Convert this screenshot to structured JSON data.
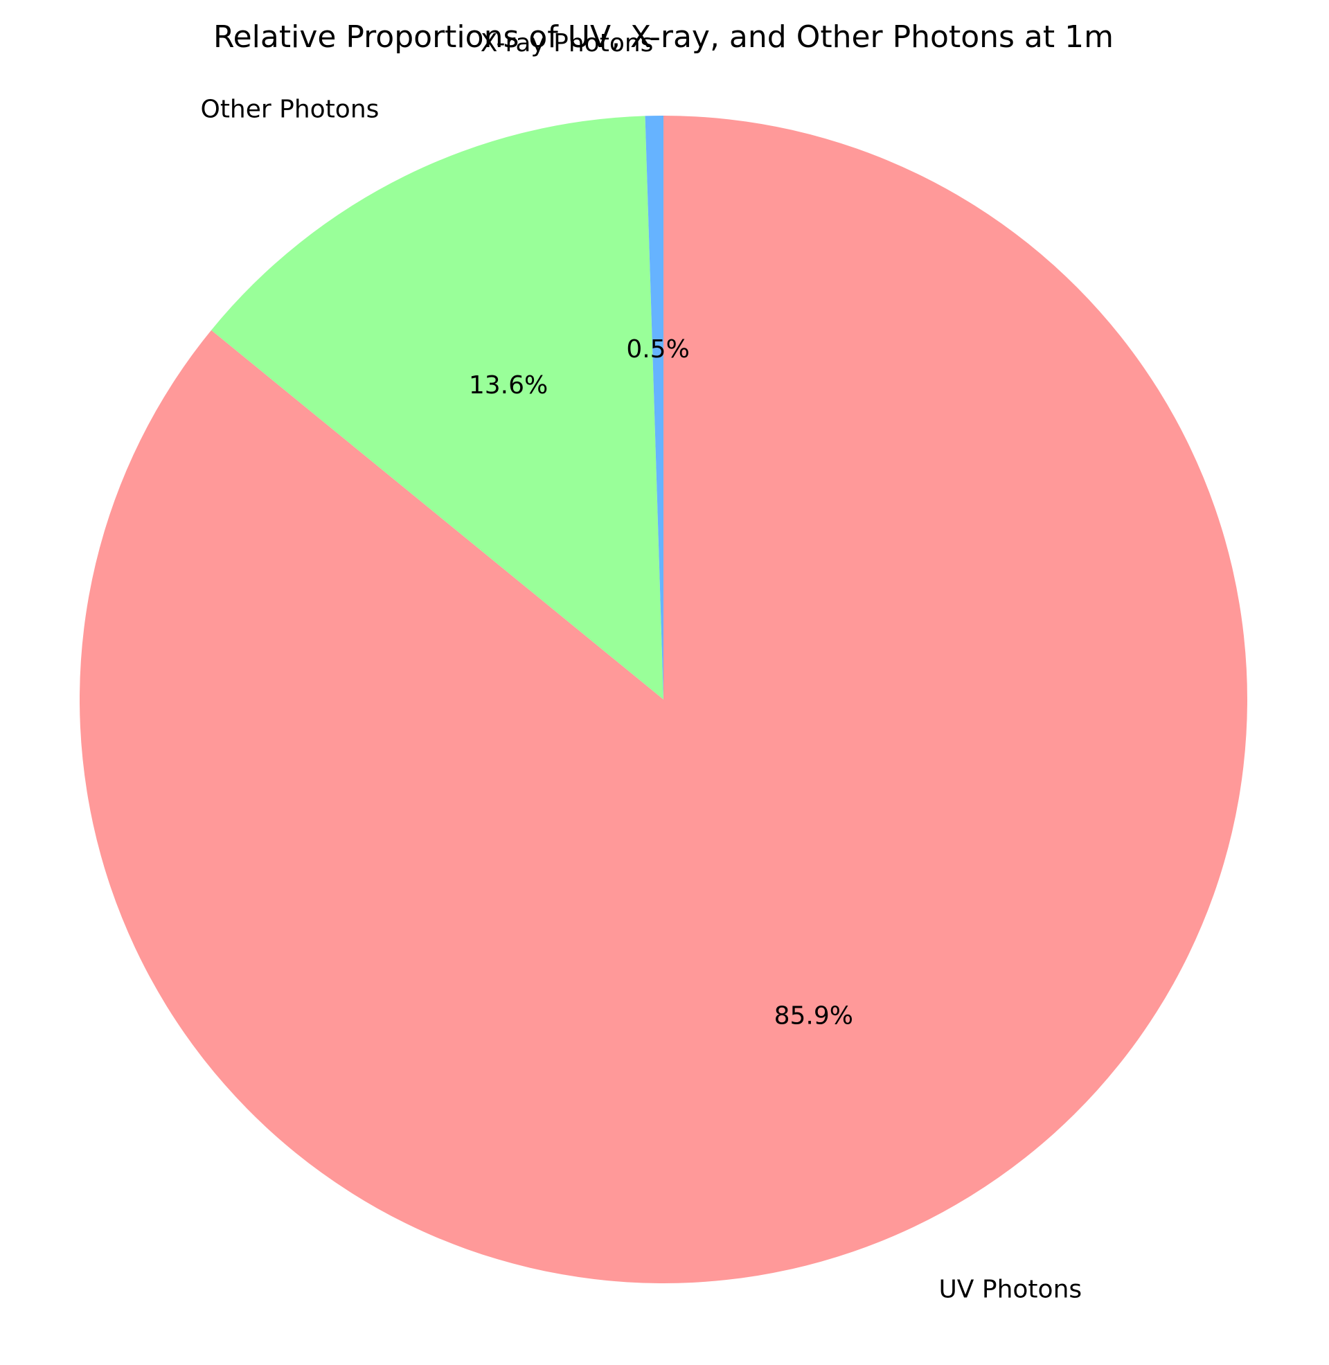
{
  "chart_data": {
    "type": "pie",
    "title": "Relative Proportions of UV, X-ray, and Other Photons at 1m",
    "start_angle_deg": 90,
    "direction": "clockwise",
    "slices": [
      {
        "label": "UV Photons",
        "value": 85.9,
        "pct_label": "85.9%",
        "color": "#ff9999"
      },
      {
        "label": "Other Photons",
        "value": 13.6,
        "pct_label": "13.6%",
        "color": "#99ff99"
      },
      {
        "label": "X-ray Photons",
        "value": 0.5,
        "pct_label": "0.5%",
        "color": "#66b3ff"
      }
    ]
  }
}
